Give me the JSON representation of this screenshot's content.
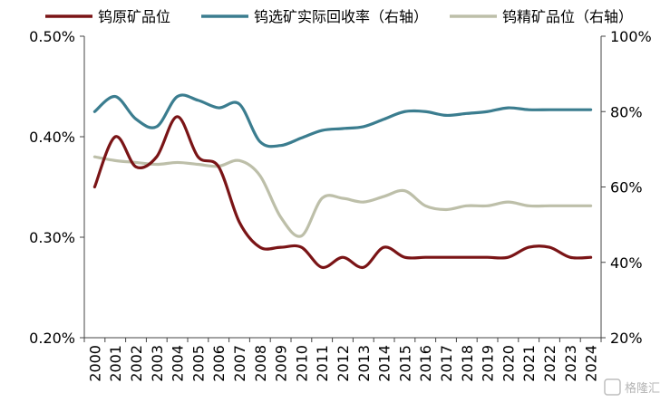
{
  "chart_data": {
    "type": "line",
    "x": [
      "2000",
      "2001",
      "2002",
      "2003",
      "2004",
      "2005",
      "2006",
      "2007",
      "2008",
      "2009",
      "2010",
      "2011",
      "2012",
      "2013",
      "2014",
      "2015",
      "2016",
      "2017",
      "2018",
      "2019",
      "2020",
      "2021",
      "2022",
      "2023",
      "2024"
    ],
    "y_left": {
      "ticks": [
        "0.20%",
        "0.30%",
        "0.40%",
        "0.50%"
      ],
      "range": [
        0.2,
        0.5
      ]
    },
    "y_right": {
      "ticks": [
        "20%",
        "40%",
        "60%",
        "80%",
        "100%"
      ],
      "range": [
        20,
        100
      ]
    },
    "legend_position": "top",
    "grid": false,
    "series": [
      {
        "name": "钨原矿品位",
        "axis": "left",
        "color": "#7a1416",
        "values": [
          0.35,
          0.4,
          0.37,
          0.38,
          0.42,
          0.38,
          0.37,
          0.315,
          0.29,
          0.29,
          0.29,
          0.27,
          0.28,
          0.27,
          0.29,
          0.28,
          0.28,
          0.28,
          0.28,
          0.28,
          0.28,
          0.29,
          0.29,
          0.28,
          0.28
        ]
      },
      {
        "name": "钨选矿实际回收率（右轴）",
        "axis": "right",
        "color": "#3b7d8f",
        "values": [
          80,
          84,
          78,
          76,
          84,
          83,
          81,
          82,
          72,
          71,
          73,
          75,
          75.5,
          76,
          78,
          80,
          80,
          79,
          79.5,
          80,
          81,
          80.5,
          80.5,
          80.5,
          80.5
        ]
      },
      {
        "name": "钨精矿品位（右轴）",
        "axis": "right",
        "color": "#bdbfa9",
        "values": [
          68,
          67,
          66.5,
          66,
          66.5,
          66,
          65.5,
          67,
          63,
          52,
          47,
          57,
          57,
          56,
          57.5,
          59,
          55,
          54,
          55,
          55,
          56,
          55,
          55,
          55,
          55
        ]
      }
    ]
  },
  "watermark": {
    "text": "格隆汇"
  }
}
